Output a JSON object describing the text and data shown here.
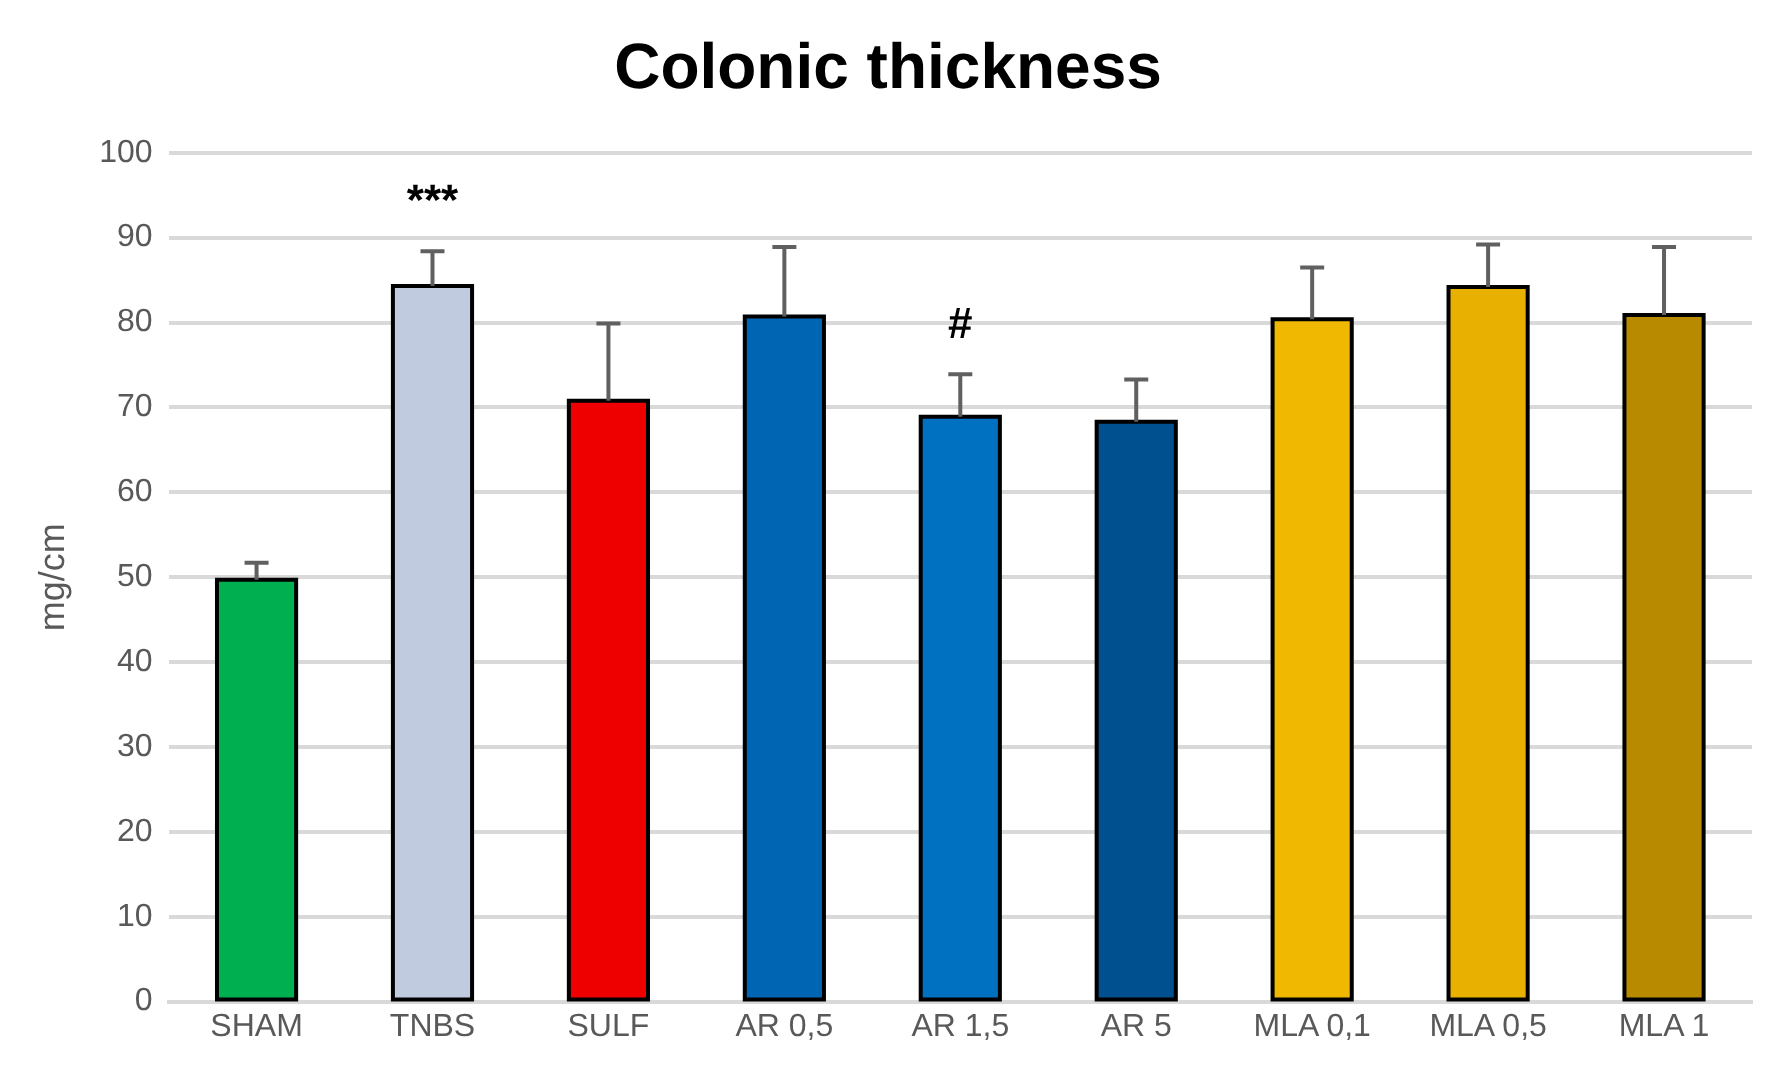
{
  "chart_data": {
    "type": "bar",
    "title": "Colonic thickness",
    "ylabel": "mg/cm",
    "categories": [
      "SHAM",
      "TNBS",
      "SULF",
      "AR 0,5",
      "AR 1,5",
      "AR 5",
      "MLA 0,1",
      "MLA 0,5",
      "MLA 1"
    ],
    "values": [
      49.7,
      84.3,
      70.8,
      80.7,
      68.9,
      68.3,
      80.4,
      84.2,
      80.9
    ],
    "errors": [
      [
        49.7,
        51.7
      ],
      [
        84.3,
        88.4
      ],
      [
        70.8,
        79.9
      ],
      [
        80.7,
        88.9
      ],
      [
        68.9,
        73.9
      ],
      [
        68.3,
        73.3
      ],
      [
        80.4,
        86.5
      ],
      [
        84.2,
        89.2
      ],
      [
        80.9,
        88.9
      ]
    ],
    "colors": [
      "#00b050",
      "#c0cbe0",
      "#ee0000",
      "#0066b3",
      "#0070c0",
      "#004f8f",
      "#f0b800",
      "#e8b000",
      "#b88a00"
    ],
    "ylim": [
      0,
      100
    ],
    "yticks": [
      0,
      10,
      20,
      30,
      40,
      50,
      60,
      70,
      80,
      90,
      100
    ],
    "grid": "y",
    "legend": false,
    "annotations": [
      {
        "text": "***",
        "x": "TNBS",
        "y": 84.3
      },
      {
        "text": "#",
        "x": "AR 1,5",
        "y": 68.9
      }
    ]
  }
}
